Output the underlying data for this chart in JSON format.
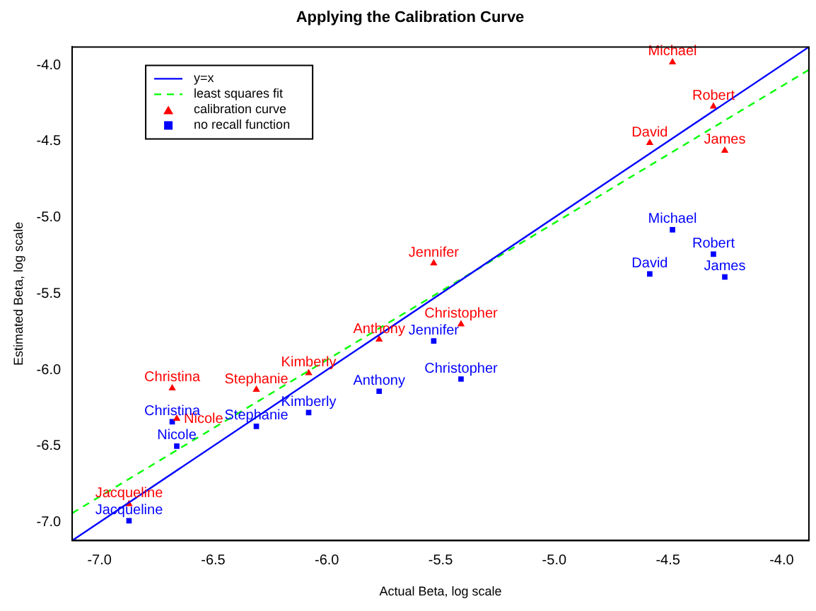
{
  "chart_data": {
    "type": "scatter",
    "title": "Applying the Calibration Curve",
    "xlabel": "Actual Beta, log scale",
    "ylabel": "Estimated Beta, log scale",
    "xlim": [
      -7.12,
      -3.88
    ],
    "ylim": [
      -7.12,
      -3.88
    ],
    "xticks": [
      {
        "value": -7,
        "label": "-7.0"
      },
      {
        "value": -6.5,
        "label": "-6.5"
      },
      {
        "value": -6,
        "label": "-6.0"
      },
      {
        "value": -5.5,
        "label": "-5.5"
      },
      {
        "value": -5,
        "label": "-5.0"
      },
      {
        "value": -4.5,
        "label": "-4.5"
      },
      {
        "value": -4,
        "label": "-4.0"
      }
    ],
    "yticks": [
      {
        "value": -7,
        "label": "-7.0"
      },
      {
        "value": -6.5,
        "label": "-6.5"
      },
      {
        "value": -6,
        "label": "-6.0"
      },
      {
        "value": -5.5,
        "label": "-5.5"
      },
      {
        "value": -5,
        "label": "-5.0"
      },
      {
        "value": -4.5,
        "label": "-4.5"
      },
      {
        "value": -4,
        "label": "-4.0"
      }
    ],
    "grid": false,
    "legend": "top left",
    "series": [
      {
        "name": "y=x",
        "type": "line",
        "color": "#0000ff",
        "line_style": "solid",
        "x": [
          -7.12,
          -3.88
        ],
        "values": [
          -7.12,
          -3.88
        ]
      },
      {
        "name": "least squares fit",
        "type": "line",
        "color": "#00ff00",
        "line_style": "dashed",
        "x": [
          -7.12,
          -3.88
        ],
        "values": [
          -6.94,
          -4.03
        ]
      },
      {
        "name": "calibration curve",
        "type": "scatter",
        "marker": "triangle",
        "color": "#ff0000",
        "x": [
          -4.48,
          -4.3,
          -4.58,
          -4.25,
          -5.53,
          -5.41,
          -5.77,
          -6.08,
          -6.68,
          -6.31,
          -6.66,
          -6.87
        ],
        "values": [
          -3.98,
          -4.27,
          -4.51,
          -4.56,
          -5.3,
          -5.7,
          -5.8,
          -6.02,
          -6.12,
          -6.13,
          -6.32,
          -6.88
        ],
        "value_labels": [
          "Michael",
          "Robert",
          "David",
          "James",
          "Jennifer",
          "Christopher",
          "Anthony",
          "Kimberly",
          "Christina",
          "Stephanie",
          "Nicole",
          "Jacqueline"
        ]
      },
      {
        "name": "no recall function",
        "type": "scatter",
        "marker": "square",
        "color": "#0000ff",
        "x": [
          -4.48,
          -4.3,
          -4.58,
          -4.25,
          -5.53,
          -5.41,
          -5.77,
          -6.08,
          -6.68,
          -6.31,
          -6.66,
          -6.87
        ],
        "values": [
          -5.08,
          -5.24,
          -5.37,
          -5.39,
          -5.81,
          -6.06,
          -6.14,
          -6.28,
          -6.34,
          -6.37,
          -6.5,
          -6.99
        ],
        "value_labels": [
          "Michael",
          "Robert",
          "David",
          "James",
          "Jennifer",
          "Christopher",
          "Anthony",
          "Kimberly",
          "Christina",
          "Stephanie",
          "Nicole",
          "Jacqueline"
        ]
      }
    ]
  }
}
